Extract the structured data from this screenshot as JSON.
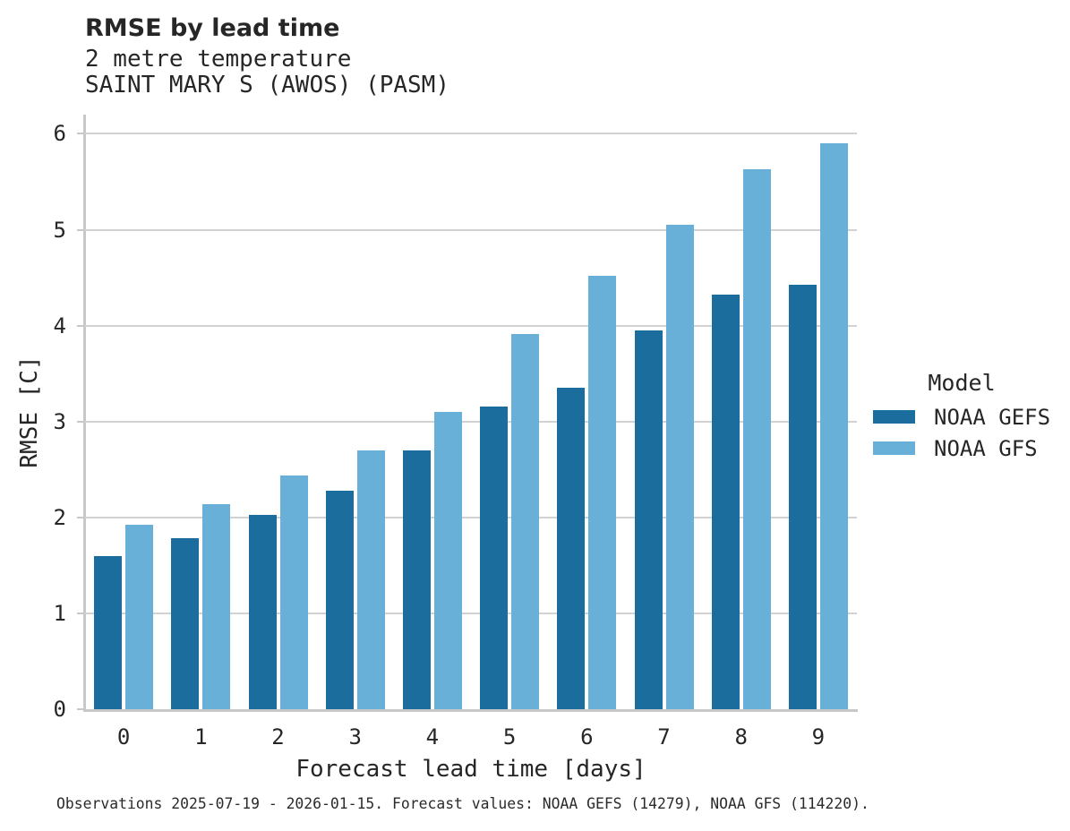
{
  "header": {
    "title": "RMSE by lead time",
    "subtitle": "2 metre temperature",
    "station": "SAINT MARY S (AWOS) (PASM)"
  },
  "legend": {
    "title": "Model",
    "entries": [
      "NOAA GEFS",
      "NOAA GFS"
    ]
  },
  "caption": "Observations 2025-07-19 - 2026-01-15. Forecast values: NOAA GEFS (14279), NOAA GFS (114220).",
  "colors": {
    "gefs_dark_blue": "#1b6d9d",
    "gfs_light_blue": "#69b0d8",
    "grid_gray": "#d2d2d2",
    "spine_gray": "#c8c8c8",
    "text_dark": "#262626"
  },
  "chart_data": {
    "type": "bar",
    "title": "RMSE by lead time",
    "subtitle": "2 metre temperature",
    "station": "SAINT MARY S (AWOS) (PASM)",
    "categories": [
      "0",
      "1",
      "2",
      "3",
      "4",
      "5",
      "6",
      "7",
      "8",
      "9"
    ],
    "series": [
      {
        "name": "NOAA GEFS",
        "color": "#1b6d9d",
        "values": [
          1.6,
          1.78,
          2.03,
          2.28,
          2.7,
          3.16,
          3.35,
          3.95,
          4.32,
          4.43
        ]
      },
      {
        "name": "NOAA GFS",
        "color": "#69b0d8",
        "values": [
          1.92,
          2.14,
          2.44,
          2.7,
          3.1,
          3.91,
          4.52,
          5.05,
          5.63,
          5.9
        ]
      }
    ],
    "xlabel": "Forecast lead time [days]",
    "ylabel": "RMSE [C]",
    "ylim": [
      0,
      6.2
    ],
    "yticks": [
      0,
      1,
      2,
      3,
      4,
      5,
      6
    ],
    "grid": true,
    "legend_title": "Model",
    "legend_position": "right"
  }
}
